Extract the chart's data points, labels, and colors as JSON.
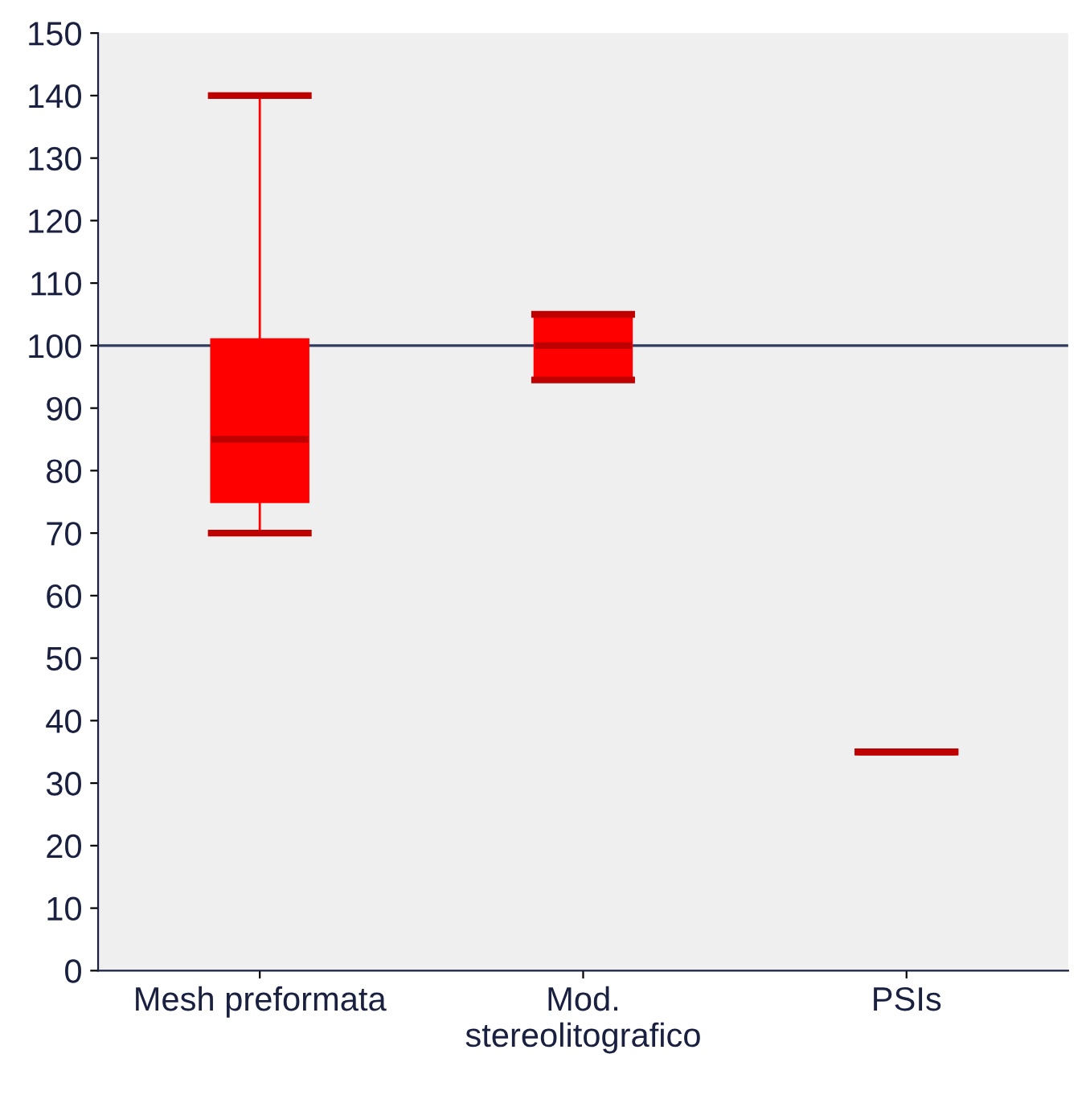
{
  "chart_data": {
    "type": "box",
    "categories": [
      "Mesh preformata",
      "Mod.\nstereolitografico",
      "PSIs"
    ],
    "boxes": [
      {
        "low": 70,
        "q1": 75,
        "median": 85,
        "q3": 101,
        "high": 140
      },
      {
        "low": 94.5,
        "q1": 95,
        "median": 100,
        "q3": 105,
        "high": 105
      },
      {
        "low": 35,
        "q1": 35,
        "median": 35,
        "q3": 35,
        "high": 35
      }
    ],
    "color": "#ff0000",
    "ylim": [
      0,
      150
    ],
    "yticks": [
      0,
      10,
      20,
      30,
      40,
      50,
      60,
      70,
      80,
      90,
      100,
      110,
      120,
      130,
      140,
      150
    ],
    "ref_lines": [
      {
        "axis": "y",
        "value": 100,
        "label": null,
        "color": "#2e3b5e",
        "line_style": "solid"
      }
    ],
    "grid": false,
    "legend": false
  }
}
